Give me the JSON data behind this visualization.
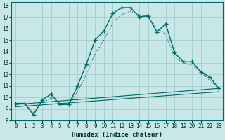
{
  "xlabel": "Humidex (Indice chaleur)",
  "xlim": [
    -0.5,
    23.5
  ],
  "ylim": [
    8,
    18.3
  ],
  "bg_color": "#c8e8e8",
  "grid_color": "#9ec8c8",
  "line_color": "#006666",
  "xticks": [
    0,
    1,
    2,
    3,
    4,
    5,
    6,
    7,
    8,
    9,
    10,
    11,
    12,
    13,
    14,
    15,
    16,
    17,
    18,
    19,
    20,
    21,
    22,
    23
  ],
  "yticks": [
    8,
    9,
    10,
    11,
    12,
    13,
    14,
    15,
    16,
    17,
    18
  ],
  "main_x": [
    0,
    1,
    2,
    3,
    4,
    5,
    6,
    7,
    8,
    9,
    10,
    11,
    12,
    13,
    14,
    15,
    16,
    17,
    18,
    19,
    20,
    21,
    22,
    23
  ],
  "main_y": [
    9.5,
    9.5,
    8.5,
    9.8,
    10.3,
    9.4,
    9.4,
    11.0,
    12.9,
    15.0,
    15.8,
    17.3,
    17.8,
    17.8,
    17.0,
    17.1,
    15.7,
    16.4,
    13.9,
    13.1,
    13.1,
    12.2,
    11.8,
    10.8
  ],
  "smooth_x": [
    0,
    1,
    2,
    3,
    4,
    5,
    6,
    7,
    8,
    9,
    10,
    11,
    12,
    13,
    14,
    15,
    16,
    17,
    18,
    19,
    20,
    21,
    22,
    23
  ],
  "smooth_y": [
    9.5,
    9.5,
    8.7,
    9.5,
    10.0,
    9.5,
    9.5,
    10.5,
    12.0,
    13.8,
    15.0,
    16.5,
    17.2,
    17.5,
    17.2,
    17.0,
    16.0,
    15.5,
    13.5,
    13.0,
    12.8,
    12.2,
    11.5,
    10.8
  ],
  "line1_x": [
    0,
    23
  ],
  "line1_y": [
    9.4,
    10.8
  ],
  "line2_x": [
    0,
    23
  ],
  "line2_y": [
    9.2,
    10.5
  ]
}
